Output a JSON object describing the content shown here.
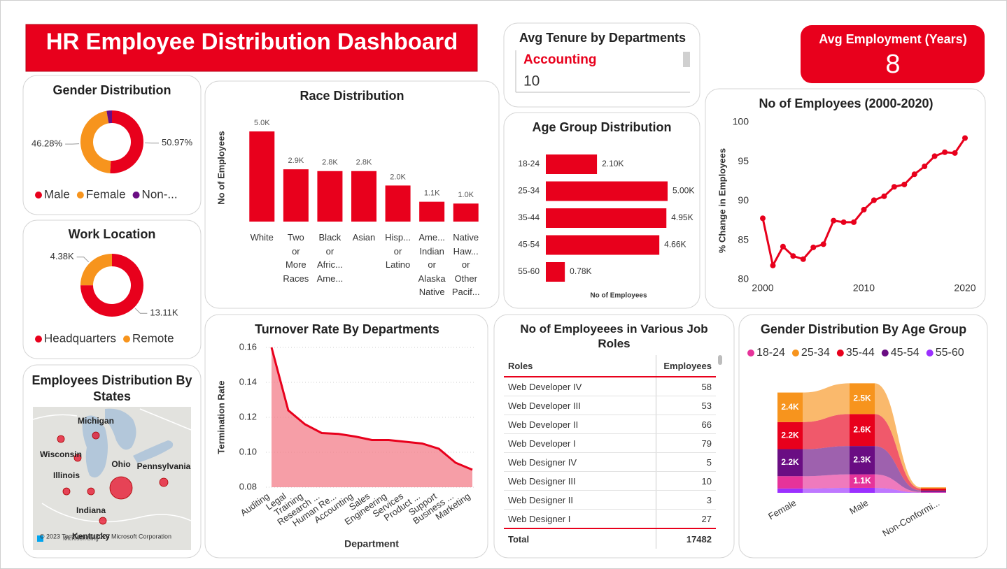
{
  "title": "HR Employee Distribution Dashboard",
  "kpi": {
    "label": "Avg Employment (Years)",
    "value": 8
  },
  "tenure": {
    "title": "Avg Tenure by Departments",
    "department": "Accounting",
    "value": 10
  },
  "chart_data": [
    {
      "type": "donut",
      "title": "Gender Distribution",
      "categories": [
        "Male",
        "Female",
        "Non-..."
      ],
      "values": [
        50.97,
        46.28,
        2.75
      ],
      "value_labels": [
        "50.97%",
        "46.28%",
        null
      ],
      "colors": [
        "#e8001c",
        "#f7941d",
        "#6a0d83"
      ]
    },
    {
      "type": "donut",
      "title": "Work Location",
      "categories": [
        "Headquarters",
        "Remote"
      ],
      "values": [
        13110,
        4380
      ],
      "value_labels": [
        "13.11K",
        "4.38K"
      ],
      "colors": [
        "#e8001c",
        "#f7941d"
      ]
    },
    {
      "type": "bar",
      "title": "Race Distribution",
      "ylabel": "No of Employees",
      "categories": [
        "White",
        "Two or More Races",
        "Black or Afric... Ame...",
        "Asian",
        "Hisp... or Latino",
        "Ame... Indian or Alaska Native",
        "Native Haw... or Other Pacif..."
      ],
      "values": [
        5000,
        2900,
        2800,
        2800,
        2000,
        1100,
        1000
      ],
      "value_labels": [
        "5.0K",
        "2.9K",
        "2.8K",
        "2.8K",
        "2.0K",
        "1.1K",
        "1.0K"
      ],
      "color": "#e8001c"
    },
    {
      "type": "barh",
      "title": "Age Group Distribution",
      "xlabel": "No of Employees",
      "categories": [
        "18-24",
        "25-34",
        "35-44",
        "45-54",
        "55-60"
      ],
      "values": [
        2100,
        5000,
        4950,
        4660,
        780
      ],
      "value_labels": [
        "2.10K",
        "5.00K",
        "4.95K",
        "4.66K",
        "0.78K"
      ],
      "color": "#e8001c"
    },
    {
      "type": "line",
      "title": "No of Employees (2000-2020)",
      "ylabel": "% Change in Employees",
      "x": [
        2000,
        2001,
        2002,
        2003,
        2004,
        2005,
        2006,
        2007,
        2008,
        2009,
        2010,
        2011,
        2012,
        2013,
        2014,
        2015,
        2016,
        2017,
        2018,
        2019,
        2020
      ],
      "values": [
        87.8,
        81.8,
        84.2,
        83.0,
        82.6,
        84.1,
        84.5,
        87.5,
        87.3,
        87.3,
        88.9,
        90.1,
        90.6,
        91.8,
        92.1,
        93.4,
        94.4,
        95.7,
        96.2,
        96.1,
        98.0
      ],
      "xlim": [
        2000,
        2020
      ],
      "xticks": [
        2000,
        2010,
        2020
      ],
      "ylim": [
        80,
        100
      ],
      "yticks": [
        80,
        85,
        90,
        95,
        100
      ],
      "color": "#e8001c",
      "grid": false
    },
    {
      "type": "area",
      "title": "Turnover Rate By Departments",
      "xlabel": "Department",
      "ylabel": "Termination Rate",
      "categories": [
        "Auditing",
        "Legal",
        "Training",
        "Research ...",
        "Human Re...",
        "Accounting",
        "Sales",
        "Engineering",
        "Services",
        "Product ...",
        "Support",
        "Business ...",
        "Marketing"
      ],
      "values": [
        0.16,
        0.124,
        0.116,
        0.111,
        0.1105,
        0.109,
        0.107,
        0.107,
        0.106,
        0.105,
        0.102,
        0.094,
        0.09
      ],
      "ylim": [
        0.08,
        0.16
      ],
      "yticks": [
        0.08,
        {
          "value": 0.1,
          "label": "0.10"
        },
        0.12,
        0.14,
        0.16
      ],
      "color": "#e8001c",
      "grid": true
    },
    {
      "type": "ribbon",
      "title": "Gender Distribution By Age Group",
      "categories": [
        "Female",
        "Male",
        "Non-Conformi..."
      ],
      "series": [
        {
          "name": "18-24",
          "color": "#e6339a",
          "values": [
            1000,
            1100,
            50
          ],
          "value_labels": [
            null,
            "1.1K",
            null
          ]
        },
        {
          "name": "25-34",
          "color": "#f7941d",
          "values": [
            2400,
            2500,
            100
          ],
          "value_labels": [
            "2.4K",
            "2.5K",
            null
          ]
        },
        {
          "name": "35-44",
          "color": "#e8001c",
          "values": [
            2200,
            2600,
            150
          ],
          "value_labels": [
            "2.2K",
            "2.6K",
            null
          ]
        },
        {
          "name": "45-54",
          "color": "#6a0d83",
          "values": [
            2200,
            2300,
            120
          ],
          "value_labels": [
            "2.2K",
            "2.3K",
            null
          ]
        },
        {
          "name": "55-60",
          "color": "#9b30ff",
          "values": [
            350,
            400,
            20
          ],
          "value_labels": [
            null,
            null,
            null
          ]
        }
      ]
    }
  ],
  "table": {
    "title": "No of Employeees in Various Job Roles",
    "columns": [
      "Roles",
      "Employees"
    ],
    "rows": [
      [
        "Web Developer IV",
        58
      ],
      [
        "Web Developer III",
        53
      ],
      [
        "Web Developer II",
        66
      ],
      [
        "Web Developer I",
        79
      ],
      [
        "Web Designer IV",
        5
      ],
      [
        "Web Designer III",
        10
      ],
      [
        "Web Designer II",
        3
      ],
      [
        "Web Designer I",
        27
      ]
    ],
    "total": [
      "Total",
      17482
    ]
  },
  "map": {
    "title": "Employees Distribution By States",
    "states": [
      "Michigan",
      "Wisconsin",
      "Ohio",
      "Pennsylvania",
      "Illinois",
      "Indiana",
      "Kentucky"
    ],
    "attribution": "© 2023 TomTom, © 2023 Microsoft Corporation",
    "provider": "Microsoft Bing"
  }
}
